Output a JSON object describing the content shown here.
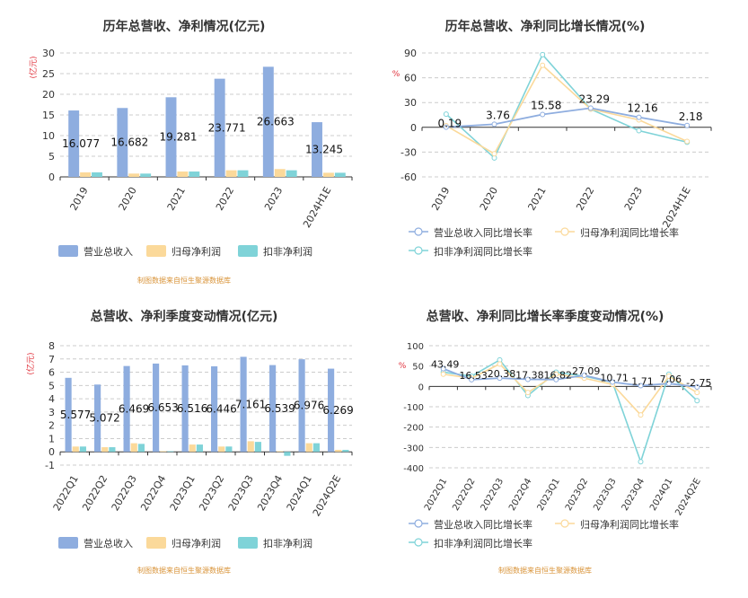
{
  "colors": {
    "revenue": "#8eaddf",
    "parent_profit": "#fbd99a",
    "deducted_profit": "#7fd3d8",
    "axis_label_red": "#e0303a",
    "source_orange": "#d9943a",
    "grid": "#cccccc",
    "axis": "#333333",
    "title": "#333333"
  },
  "chart_data": [
    {
      "id": "annual-values",
      "type": "bar",
      "title": "历年总营收、净利情况(亿元)",
      "ylabel": "(亿元)",
      "ylim": [
        0,
        30
      ],
      "yticks": [
        "0",
        "5",
        "10",
        "15",
        "20",
        "25",
        "30"
      ],
      "categories": [
        "2019",
        "2020",
        "2021",
        "2022",
        "2023",
        "2024H1E"
      ],
      "series": [
        {
          "name": "营业总收入",
          "values": [
            16.077,
            16.682,
            19.281,
            23.771,
            26.663,
            13.245
          ],
          "labels": [
            "16.077",
            "16.682",
            "19.281",
            "23.771",
            "26.663",
            "13.245"
          ]
        },
        {
          "name": "归母净利润",
          "values": [
            1.1,
            0.8,
            1.3,
            1.6,
            1.9,
            1.0
          ]
        },
        {
          "name": "扣非净利润",
          "values": [
            1.1,
            0.8,
            1.3,
            1.6,
            1.6,
            1.0
          ]
        }
      ],
      "source": "制图数据来自恒生聚源数据库"
    },
    {
      "id": "annual-growth",
      "type": "line",
      "title": "历年总营收、净利同比增长情况(%)",
      "ylabel": "%",
      "ylim": [
        -60,
        90
      ],
      "yticks": [
        "-60",
        "-30",
        "0",
        "30",
        "60",
        "90"
      ],
      "categories": [
        "2019",
        "2020",
        "2021",
        "2022",
        "2023",
        "2024H1E"
      ],
      "series": [
        {
          "name": "营业总收入同比增长率",
          "values": [
            0.19,
            3.76,
            15.58,
            23.29,
            12.16,
            2.18
          ],
          "labels": [
            "0.19",
            "3.76",
            "15.58",
            "23.29",
            "12.16",
            "2.18"
          ]
        },
        {
          "name": "归母净利润同比增长率",
          "values": [
            2,
            -32,
            75,
            22,
            9,
            -17
          ]
        },
        {
          "name": "扣非净利润同比增长率",
          "values": [
            16,
            -37,
            88,
            22,
            -4,
            -18
          ]
        }
      ],
      "source": ""
    },
    {
      "id": "quarterly-values",
      "type": "bar",
      "title": "总营收、净利季度变动情况(亿元)",
      "ylabel": "(亿元)",
      "ylim": [
        -1,
        8
      ],
      "yticks": [
        "-1",
        "0",
        "1",
        "2",
        "3",
        "4",
        "5",
        "6",
        "7",
        "8"
      ],
      "categories": [
        "2022Q1",
        "2022Q2",
        "2022Q3",
        "2022Q4",
        "2023Q1",
        "2023Q2",
        "2023Q3",
        "2023Q4",
        "2024Q1",
        "2024Q2E"
      ],
      "series": [
        {
          "name": "营业总收入",
          "values": [
            5.577,
            5.072,
            6.469,
            6.653,
            6.516,
            6.446,
            7.161,
            6.539,
            6.976,
            6.269
          ],
          "labels": [
            "5.577",
            "5.072",
            "6.469",
            "6.653",
            "6.516",
            "6.446",
            "7.161",
            "6.539",
            "6.976",
            "6.269"
          ]
        },
        {
          "name": "归母净利润",
          "values": [
            0.4,
            0.35,
            0.65,
            0.05,
            0.55,
            0.4,
            0.8,
            0.05,
            0.65,
            0.15
          ]
        },
        {
          "name": "扣非净利润",
          "values": [
            0.4,
            0.35,
            0.6,
            0.05,
            0.55,
            0.4,
            0.75,
            -0.3,
            0.65,
            0.15
          ]
        }
      ],
      "source": "制图数据来自恒生聚源数据库"
    },
    {
      "id": "quarterly-growth",
      "type": "line",
      "title": "总营收、净利同比增长率季度变动情况(%)",
      "ylabel": "%",
      "ylim": [
        -400,
        100
      ],
      "yticks": [
        "-400",
        "-300",
        "-200",
        "-100",
        "0",
        "50",
        "100"
      ],
      "ytick_values": [
        -400,
        -300,
        -200,
        -100,
        0,
        50,
        100
      ],
      "categories": [
        "2022Q1",
        "2022Q2",
        "2022Q3",
        "2022Q4",
        "2023Q1",
        "2023Q2",
        "2023Q3",
        "2023Q4",
        "2024Q1",
        "2024Q2E"
      ],
      "series": [
        {
          "name": "营业总收入同比增长率",
          "values": [
            43.49,
            16.53,
            20.38,
            17.38,
            16.82,
            27.09,
            10.71,
            1.71,
            7.06,
            -2.75
          ],
          "labels": [
            "43.49",
            "16.53",
            "20.38",
            "17.38",
            "16.82",
            "27.09",
            "10.71",
            "1.71",
            "7.06",
            "-2.75"
          ]
        },
        {
          "name": "归母净利润同比增长率",
          "values": [
            30,
            20,
            55,
            -30,
            30,
            20,
            5,
            -140,
            25,
            -30
          ]
        },
        {
          "name": "扣非净利润同比增长率",
          "values": [
            35,
            25,
            65,
            -45,
            35,
            25,
            10,
            -370,
            30,
            -70
          ]
        }
      ],
      "source": "制图数据来自恒生聚源数据库"
    }
  ]
}
